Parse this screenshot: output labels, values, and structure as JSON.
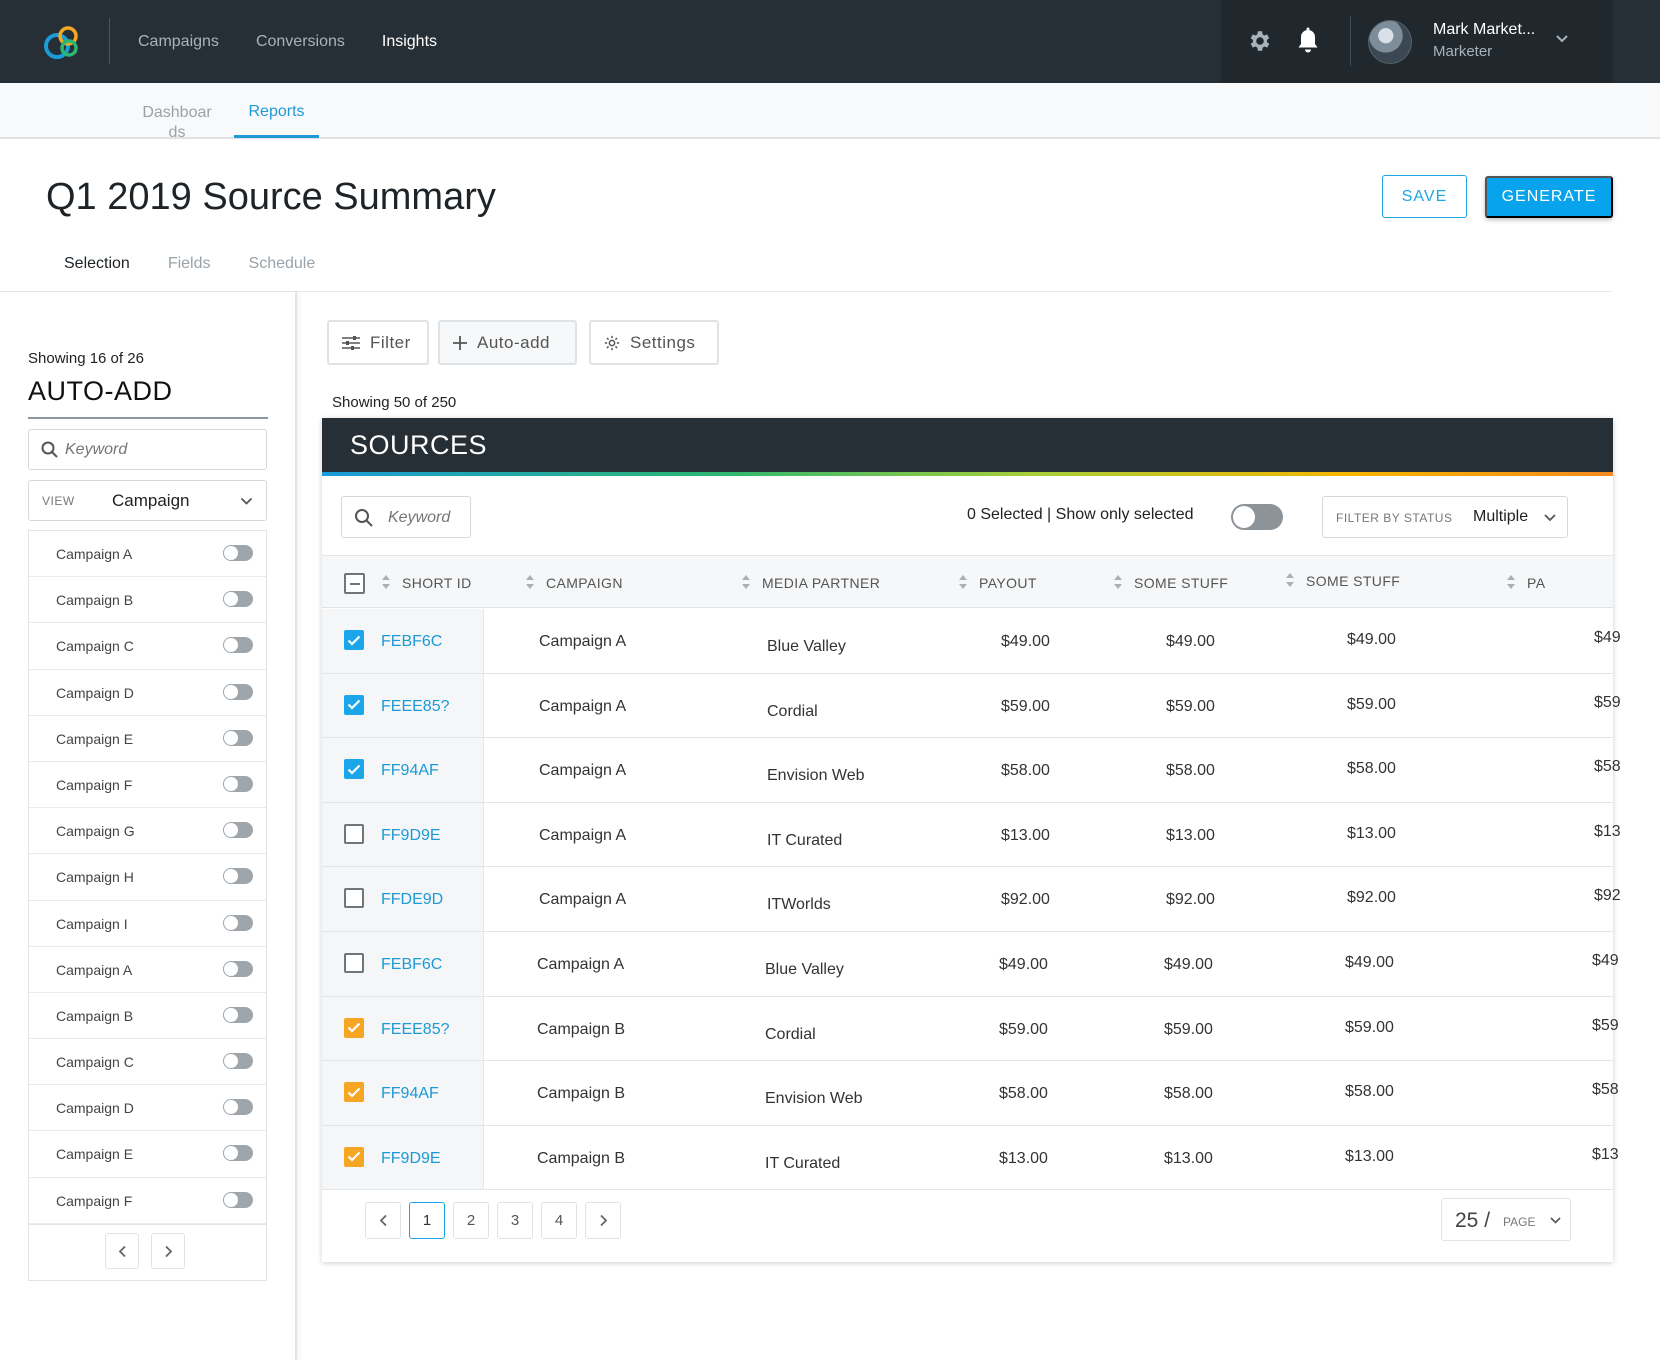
{
  "topbar": {
    "nav": [
      {
        "label": "Campaigns",
        "active": false
      },
      {
        "label": "Conversions",
        "active": false
      },
      {
        "label": "Insights",
        "active": true
      }
    ],
    "user": {
      "name": "Mark Market...",
      "role": "Marketer"
    },
    "icons": [
      "logo-icon",
      "gear-icon",
      "bell-icon",
      "chevron-down-icon"
    ]
  },
  "subnav": {
    "dashboards": "Dashboards",
    "reports": "Reports"
  },
  "page": {
    "title": "Q1 2019 Source Summary",
    "save_label": "SAVE",
    "generate_label": "GENERATE",
    "tabs": [
      "Selection",
      "Fields",
      "Schedule"
    ],
    "active_tab": "Selection"
  },
  "sidebar": {
    "count": "Showing 16 of 26",
    "title": "AUTO-ADD",
    "search_placeholder": "Keyword",
    "view_label": "VIEW",
    "view_value": "Campaign",
    "items": [
      "Campaign A",
      "Campaign B",
      "Campaign C",
      "Campaign D",
      "Campaign E",
      "Campaign F",
      "Campaign G",
      "Campaign H",
      "Campaign I",
      "Campaign A",
      "Campaign B",
      "Campaign C",
      "Campaign D",
      "Campaign E",
      "Campaign F"
    ]
  },
  "toolbar": {
    "filter": "Filter",
    "autoadd": "Auto-add",
    "settings": "Settings"
  },
  "main": {
    "count": "Showing 50 of 250",
    "panel_title": "SOURCES",
    "search_placeholder": "Keyword",
    "selected_text": "0 Selected | Show only selected",
    "filter_label": "FILTER BY STATUS",
    "filter_value": "Multiple",
    "columns": [
      "SHORT ID",
      "CAMPAIGN",
      "MEDIA PARTNER",
      "PAYOUT",
      "SOME STUFF",
      "SOME STUFF",
      "PA"
    ],
    "rows": [
      {
        "check": "blue",
        "id": "FEBF6C",
        "campaign": "Campaign A",
        "partner": "Blue Valley",
        "payout": "$49.00",
        "s1": "$49.00",
        "s2": "$49.00",
        "clip": "$49"
      },
      {
        "check": "blue",
        "id": "FEEE85?",
        "campaign": "Campaign A",
        "partner": "Cordial",
        "payout": "$59.00",
        "s1": "$59.00",
        "s2": "$59.00",
        "clip": "$59"
      },
      {
        "check": "blue",
        "id": "FF94AF",
        "campaign": "Campaign A",
        "partner": "Envision Web",
        "payout": "$58.00",
        "s1": "$58.00",
        "s2": "$58.00",
        "clip": "$58"
      },
      {
        "check": "empty",
        "id": "FF9D9E",
        "campaign": "Campaign A",
        "partner": "IT Curated",
        "payout": "$13.00",
        "s1": "$13.00",
        "s2": "$13.00",
        "clip": "$13"
      },
      {
        "check": "empty",
        "id": "FFDE9D",
        "campaign": "Campaign A",
        "partner": "ITWorlds",
        "payout": "$92.00",
        "s1": "$92.00",
        "s2": "$92.00",
        "clip": "$92"
      },
      {
        "check": "empty",
        "id": "FEBF6C",
        "campaign": "Campaign A",
        "partner": "Blue Valley",
        "payout": "$49.00",
        "s1": "$49.00",
        "s2": "$49.00",
        "clip": "$49"
      },
      {
        "check": "orange",
        "id": "FEEE85?",
        "campaign": "Campaign B",
        "partner": "Cordial",
        "payout": "$59.00",
        "s1": "$59.00",
        "s2": "$59.00",
        "clip": "$59"
      },
      {
        "check": "orange",
        "id": "FF94AF",
        "campaign": "Campaign B",
        "partner": "Envision Web",
        "payout": "$58.00",
        "s1": "$58.00",
        "s2": "$58.00",
        "clip": "$58"
      },
      {
        "check": "orange",
        "id": "FF9D9E",
        "campaign": "Campaign B",
        "partner": "IT Curated",
        "payout": "$13.00",
        "s1": "$13.00",
        "s2": "$13.00",
        "clip": "$13"
      }
    ],
    "pages": [
      "1",
      "2",
      "3",
      "4"
    ],
    "current_page": "1",
    "per_page": "25 /",
    "per_page_label": "PAGE"
  },
  "colors": {
    "topbar": "#262f36",
    "accent_blue": "#07a3ec",
    "check_blue": "#1ba6ea",
    "check_orange": "#f5a623"
  }
}
